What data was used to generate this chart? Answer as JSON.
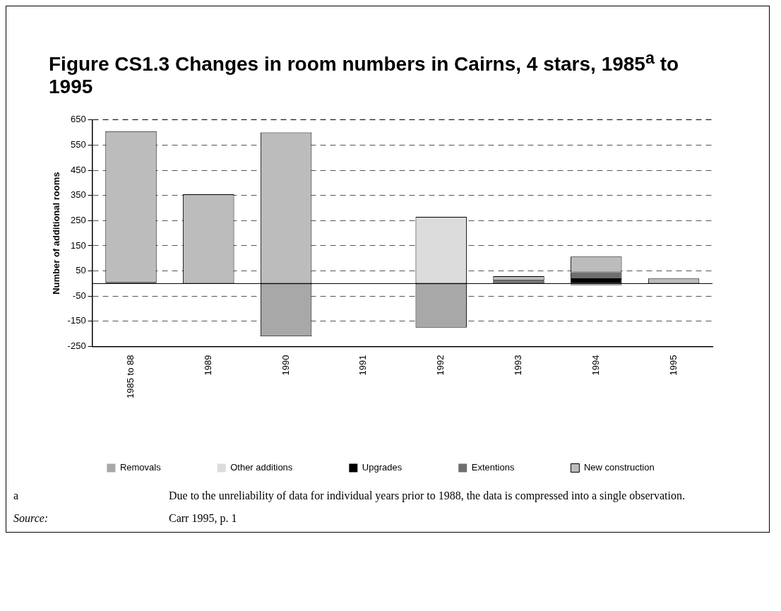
{
  "chart_data": {
    "type": "bar",
    "title": "Figure CS1.3  Changes in room numbers in Cairns, 4 stars, 1985$^{a}$ to 1995",
    "ylabel": "Number of additional rooms",
    "categories": [
      "1985 to 88",
      "1989",
      "1990",
      "1991",
      "1992",
      "1993",
      "1994",
      "1995"
    ],
    "series": [
      {
        "name": "Removals",
        "color": "#a8a8a8",
        "values": [
          null,
          null,
          -210,
          null,
          -175,
          null,
          -8,
          null
        ]
      },
      {
        "name": "Other additions",
        "color": "#dcdcdc",
        "values": [
          null,
          null,
          null,
          null,
          265,
          null,
          null,
          null
        ]
      },
      {
        "name": "Upgrades",
        "color": "#000000",
        "values": [
          null,
          null,
          null,
          null,
          null,
          null,
          18,
          null
        ]
      },
      {
        "name": "Extentions",
        "color": "#6e6e6e",
        "values": [
          5,
          null,
          null,
          null,
          null,
          12,
          27,
          null
        ]
      },
      {
        "name": "New construction",
        "color": "#bcbcbc",
        "values": [
          600,
          355,
          600,
          null,
          null,
          17,
          62,
          20
        ]
      }
    ],
    "stacked": true,
    "ylim": [
      -250,
      650
    ],
    "yticks": [
      -250,
      -150,
      -50,
      50,
      150,
      250,
      350,
      450,
      550,
      650
    ],
    "grid": "y",
    "legend": "bottom",
    "annotations": [
      "a\tDue to the unreliability of data for individual years prior to 1988, the data is compressed into a single observation.",
      "Source:\tCarr 1995, p. 1"
    ]
  }
}
